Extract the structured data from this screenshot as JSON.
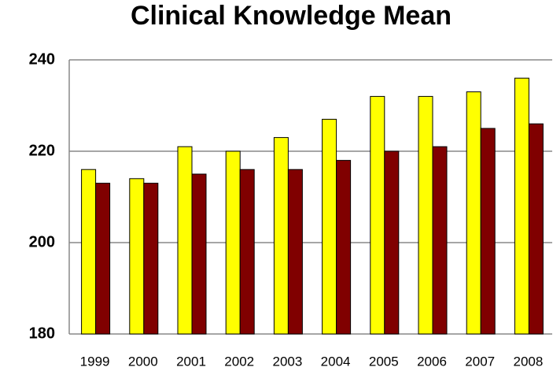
{
  "chart_data": {
    "type": "bar",
    "title": "Clinical Knowledge Mean",
    "categories": [
      "1999",
      "2000",
      "2001",
      "2002",
      "2003",
      "2004",
      "2005",
      "2006",
      "2007",
      "2008"
    ],
    "series": [
      {
        "color": "#ffff00",
        "values": [
          216,
          214,
          221,
          220,
          223,
          227,
          232,
          232,
          233,
          236
        ]
      },
      {
        "color": "#800000",
        "values": [
          213,
          213,
          215,
          216,
          216,
          218,
          220,
          221,
          225,
          226
        ]
      }
    ],
    "ylim": [
      180,
      240
    ],
    "yticks": [
      180,
      200,
      220,
      240
    ],
    "grid": true
  }
}
